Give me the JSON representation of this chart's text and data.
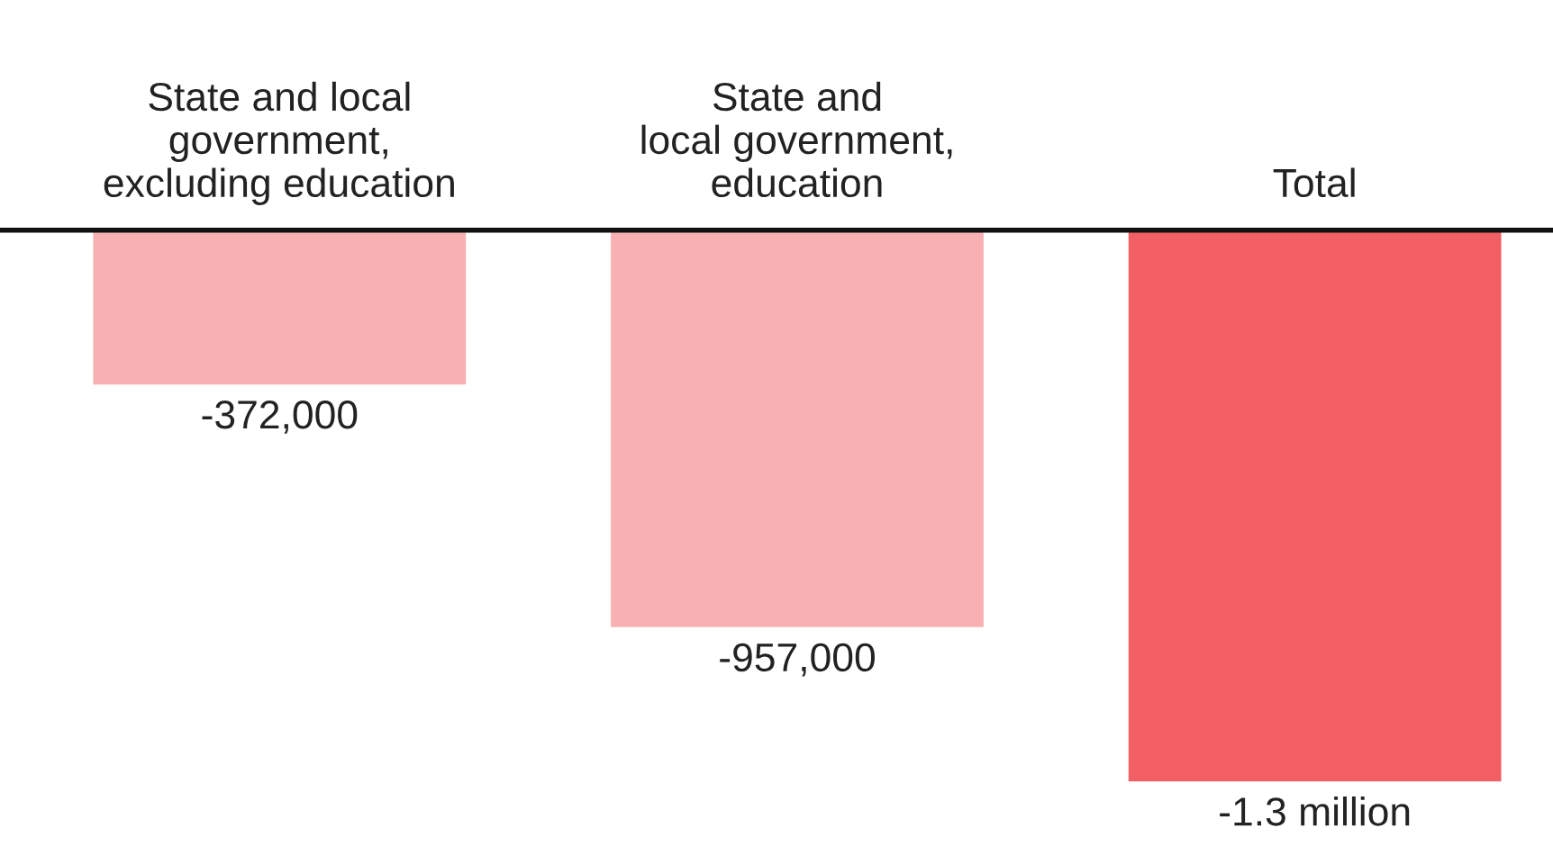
{
  "chart_data": {
    "type": "bar",
    "categories": [
      "State and local\ngovernment,\nexcluding education",
      "State and\nlocal government,\neducation",
      "Total"
    ],
    "values": [
      -372000,
      -957000,
      -1329000
    ],
    "colors": [
      "#f8b0b3",
      "#f8b0b3",
      "#f26065"
    ],
    "value_labels": [
      "-372,000",
      "-957,000",
      "-1.3 million"
    ],
    "grid": false,
    "legend": false
  }
}
